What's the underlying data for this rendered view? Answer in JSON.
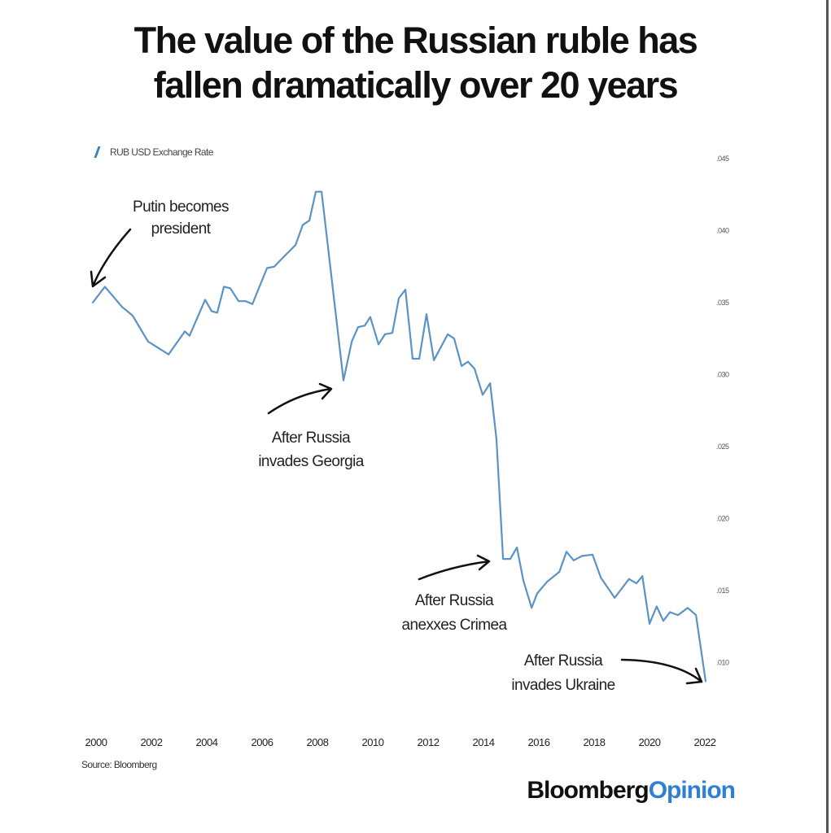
{
  "title_lines": [
    "The value of the Russian ruble has",
    "fallen dramatically over 20 years"
  ],
  "source": "Source: Bloomberg",
  "logo": {
    "part1": "Bloomberg",
    "part2": "Opinion"
  },
  "colors": {
    "line": "#5b93c4",
    "legend_swatch": "#3f7fc0",
    "logo_accent": "#2f7fd6",
    "annotation": "#111111"
  },
  "chart_data": {
    "type": "line",
    "title": "The value of the Russian ruble has fallen dramatically over 20 years",
    "legend": {
      "entries": [
        "RUB USD Exchange Rate"
      ],
      "placement": "top-left"
    },
    "xlabel": "",
    "ylabel": "",
    "xlim": [
      2000,
      2022
    ],
    "ylim": [
      0.008,
      0.045
    ],
    "y_axis_side": "right",
    "grid": false,
    "x_ticks": [
      "2000",
      "2002",
      "2004",
      "2006",
      "2008",
      "2010",
      "2012",
      "2014",
      "2016",
      "2018",
      "2020",
      "2022"
    ],
    "y_ticks": [
      ".045",
      ".040",
      ".035",
      ".030",
      ".025",
      ".020",
      ".015",
      ".010"
    ],
    "y_tick_values": [
      0.045,
      0.04,
      0.035,
      0.03,
      0.025,
      0.02,
      0.015,
      0.01
    ],
    "series": [
      {
        "name": "RUB USD Exchange Rate",
        "x": [
          1999.88,
          2000.32,
          2000.94,
          2001.32,
          2001.88,
          2002.62,
          2003.21,
          2003.38,
          2003.94,
          2004.18,
          2004.38,
          2004.62,
          2004.85,
          2005.15,
          2005.41,
          2005.65,
          2006.18,
          2006.44,
          2006.74,
          2007.21,
          2007.47,
          2007.71,
          2007.94,
          2008.15,
          2008.94,
          2009.24,
          2009.47,
          2009.71,
          2009.91,
          2010.21,
          2010.44,
          2010.71,
          2010.94,
          2011.18,
          2011.44,
          2011.68,
          2011.94,
          2012.21,
          2012.71,
          2012.94,
          2013.21,
          2013.44,
          2013.68,
          2013.97,
          2014.24,
          2014.47,
          2014.71,
          2014.97,
          2015.21,
          2015.44,
          2015.74,
          2015.94,
          2016.29,
          2016.74,
          2017.0,
          2017.26,
          2017.56,
          2017.94,
          2018.24,
          2018.74,
          2019.26,
          2019.53,
          2019.74,
          2020.0,
          2020.26,
          2020.5,
          2020.74,
          2021.03,
          2021.38,
          2021.68,
          2022.03
        ],
        "y": [
          0.035,
          0.0361,
          0.0347,
          0.0341,
          0.0323,
          0.0314,
          0.033,
          0.0327,
          0.0352,
          0.0344,
          0.0343,
          0.0361,
          0.036,
          0.0351,
          0.0351,
          0.0349,
          0.0374,
          0.0375,
          0.0381,
          0.039,
          0.0404,
          0.0407,
          0.0427,
          0.0427,
          0.0296,
          0.0323,
          0.0333,
          0.0334,
          0.034,
          0.0321,
          0.0328,
          0.0329,
          0.0353,
          0.0359,
          0.0311,
          0.0311,
          0.0342,
          0.031,
          0.0328,
          0.0325,
          0.0306,
          0.0309,
          0.0304,
          0.0286,
          0.0294,
          0.0255,
          0.0172,
          0.0172,
          0.018,
          0.0157,
          0.0138,
          0.0148,
          0.0156,
          0.0163,
          0.0177,
          0.0171,
          0.0174,
          0.0175,
          0.0159,
          0.0145,
          0.0158,
          0.0155,
          0.016,
          0.0127,
          0.0139,
          0.0129,
          0.0135,
          0.0133,
          0.0138,
          0.0133,
          0.0087
        ]
      }
    ],
    "annotations": [
      {
        "lines": [
          "Putin becomes",
          "president"
        ],
        "x": 2000,
        "y": 0.0355
      },
      {
        "lines": [
          "After Russia",
          "invades Georgia"
        ],
        "x": 2008.9,
        "y": 0.0296
      },
      {
        "lines": [
          "After Russia",
          "anexxes Crimea"
        ],
        "x": 2014.6,
        "y": 0.0172
      },
      {
        "lines": [
          "After Russia",
          "invades Ukraine"
        ],
        "x": 2022,
        "y": 0.0087
      }
    ]
  }
}
